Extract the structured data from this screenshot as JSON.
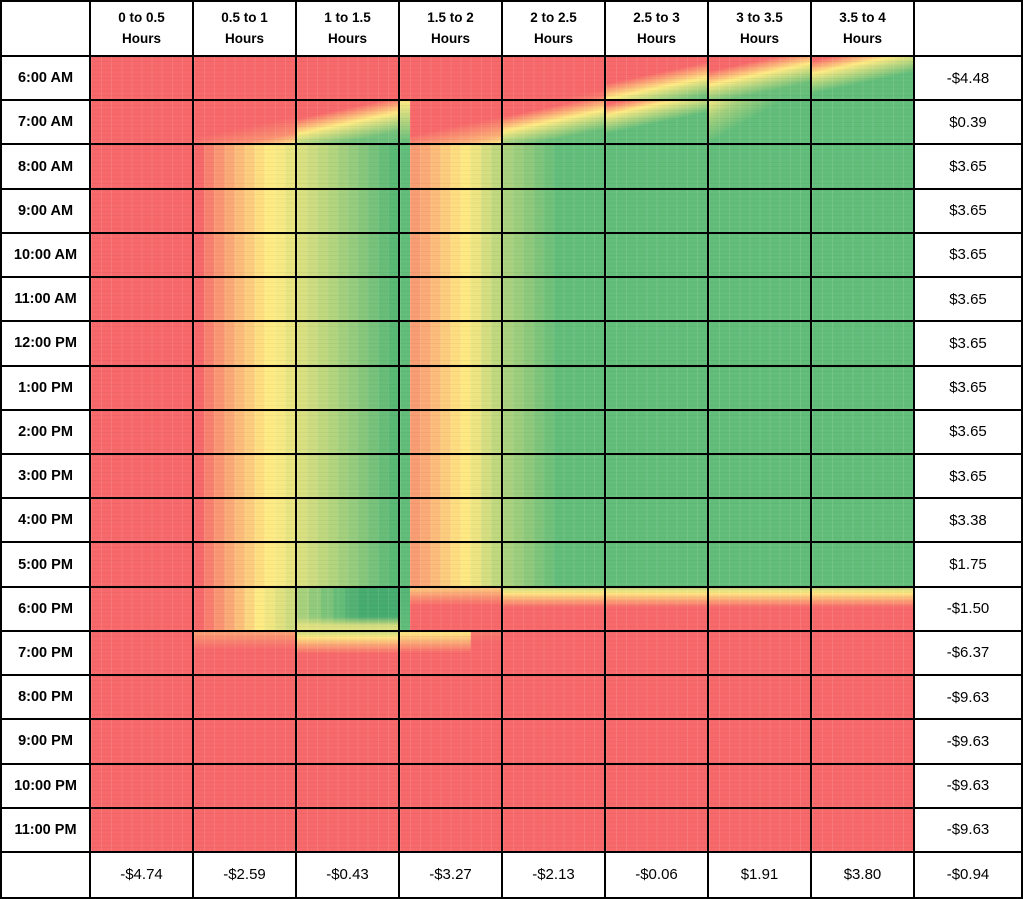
{
  "palette": {
    "scale_min_red": "#f8696b",
    "scale_mid_yellow": "#ffeb84",
    "scale_max_green": "#63be7b",
    "grid_line": "#000000",
    "cell_background": "#ffffff",
    "text": "#000000"
  },
  "header": {
    "corner_label": "",
    "duration_columns": [
      {
        "line1": "0 to 0.5",
        "line2": "Hours"
      },
      {
        "line1": "0.5 to 1",
        "line2": "Hours"
      },
      {
        "line1": "1 to 1.5",
        "line2": "Hours"
      },
      {
        "line1": "1.5 to 2",
        "line2": "Hours"
      },
      {
        "line1": "2 to 2.5",
        "line2": "Hours"
      },
      {
        "line1": "2.5 to 3",
        "line2": "Hours"
      },
      {
        "line1": "3 to 3.5",
        "line2": "Hours"
      },
      {
        "line1": "3.5 to 4",
        "line2": "Hours"
      }
    ],
    "totals_column_label": ""
  },
  "rows": [
    {
      "time": "6:00 AM",
      "total": "-$4.48",
      "cells": [
        "R",
        "R",
        "R",
        "R",
        "a5",
        "a6",
        "a7",
        "a8"
      ]
    },
    {
      "time": "7:00 AM",
      "total": "$0.39",
      "cells": [
        "R",
        "s2",
        "s3",
        "s4",
        "s5",
        "s6",
        "s7",
        "G"
      ]
    },
    {
      "time": "8:00 AM",
      "total": "$3.65",
      "cells": [
        "R",
        "b",
        "c",
        "d",
        "e",
        "G",
        "G",
        "G"
      ]
    },
    {
      "time": "9:00 AM",
      "total": "$3.65",
      "cells": [
        "R",
        "b",
        "c",
        "d",
        "e",
        "G",
        "G",
        "G"
      ]
    },
    {
      "time": "10:00 AM",
      "total": "$3.65",
      "cells": [
        "R",
        "b",
        "c",
        "d",
        "e",
        "G",
        "G",
        "G"
      ]
    },
    {
      "time": "11:00 AM",
      "total": "$3.65",
      "cells": [
        "R",
        "b",
        "c",
        "d",
        "e",
        "G",
        "G",
        "G"
      ]
    },
    {
      "time": "12:00 PM",
      "total": "$3.65",
      "cells": [
        "R",
        "b",
        "c",
        "d",
        "e",
        "G",
        "G",
        "G"
      ]
    },
    {
      "time": "1:00 PM",
      "total": "$3.65",
      "cells": [
        "R",
        "b",
        "c",
        "d",
        "e",
        "G",
        "G",
        "G"
      ]
    },
    {
      "time": "2:00 PM",
      "total": "$3.65",
      "cells": [
        "R",
        "b",
        "c",
        "d",
        "e",
        "G",
        "G",
        "G"
      ]
    },
    {
      "time": "3:00 PM",
      "total": "$3.65",
      "cells": [
        "R",
        "b",
        "c",
        "d",
        "e",
        "G",
        "G",
        "G"
      ]
    },
    {
      "time": "4:00 PM",
      "total": "$3.38",
      "cells": [
        "R",
        "b",
        "c",
        "d",
        "e",
        "G",
        "G",
        "G"
      ]
    },
    {
      "time": "5:00 PM",
      "total": "$1.75",
      "cells": [
        "R",
        "b",
        "c",
        "d",
        "e",
        "G",
        "G",
        "G"
      ]
    },
    {
      "time": "6:00 PM",
      "total": "-$1.50",
      "cells": [
        "R",
        "n2",
        "n3",
        "n4",
        "n5",
        "n5",
        "n5",
        "n5"
      ]
    },
    {
      "time": "7:00 PM",
      "total": "-$6.37",
      "cells": [
        "R",
        "m2",
        "m3",
        "m4",
        "R",
        "R",
        "R",
        "R"
      ]
    },
    {
      "time": "8:00 PM",
      "total": "-$9.63",
      "cells": [
        "R",
        "R",
        "R",
        "R",
        "R",
        "R",
        "R",
        "R"
      ]
    },
    {
      "time": "9:00 PM",
      "total": "-$9.63",
      "cells": [
        "R",
        "R",
        "R",
        "R",
        "R",
        "R",
        "R",
        "R"
      ]
    },
    {
      "time": "10:00 PM",
      "total": "-$9.63",
      "cells": [
        "R",
        "R",
        "R",
        "R",
        "R",
        "R",
        "R",
        "R"
      ]
    },
    {
      "time": "11:00 PM",
      "total": "-$9.63",
      "cells": [
        "R",
        "R",
        "R",
        "R",
        "R",
        "R",
        "R",
        "R"
      ]
    }
  ],
  "footer": {
    "corner_label": "",
    "column_totals": [
      "-$4.74",
      "-$2.59",
      "-$0.43",
      "-$3.27",
      "-$2.13",
      "-$0.06",
      "$1.91",
      "$3.80"
    ],
    "grand_total": "-$0.94"
  },
  "cell_styles": {
    "R": "#f8696b",
    "G": "#63be7b",
    "b": "linear-gradient(90deg,#f8696b 0 10%,#f9816f 10% 20%,#fa9673 20% 30%,#fbaa77 30% 40%,#fcbc7a 40% 50%,#fdcd7e 50% 60%,#fede81 60% 70%,#ffeb84 70% 80%,#f7e983 80% 90%,#e9e583 90% 100%)",
    "c": "linear-gradient(90deg,#d9e081 0 10%,#cddc80 10% 20%,#c0d97f 20% 30%,#b2d57e 30% 40%,#a4d07e 40% 50%,#96cc7d 50% 60%,#87c77c 60% 70%,#77c37b 70% 80%,#68be79 80% 90%,#5bb976 90% 100%)",
    "d": "linear-gradient(90deg,#63be7b 0 10%,#f99d74 10% 20%,#fbab77 20% 30%,#fcbc7a 30% 40%,#fdcd7e 40% 50%,#fedd81 50% 60%,#ffe983 60% 70%,#ece582 70% 80%,#d5de81 80% 90%,#c0d97f 90% 100%)",
    "e": "linear-gradient(90deg,#aad27e 0 10%,#9cce7d 10% 20%,#8ec97c 20% 30%,#7fc57c 30% 40%,#71c17b 40% 50%,#63be7b 50% 100%)",
    "a5": "linear-gradient(168deg,#f8696b 0 84%,#f97f6f 96%,#fb9b73 100%)",
    "a6": "linear-gradient(168deg,#f8696b 0 42%,#ffeb84 66%,#7ac47c 92%,#63be7b 100%)",
    "a7": "linear-gradient(168deg,#f8696b 0 22%,#ffeb84 44%,#6cc07b 74%,#63be7b 100%)",
    "a8": "linear-gradient(168deg,#f8696b 0 6%,#ffeb84 26%,#63be7b 58%)",
    "s2": "linear-gradient(168deg,#f8696b 0 58%,#fa9172 84%,#fede82 100%)",
    "s3": "linear-gradient(168deg,#f8696b 0 28%,#ffeb84 52%,#74c27c 82%,#63be7b 100%)",
    "s4": "linear-gradient(180deg,#ffe983 0,#b8d67f 45%,#63be7b 100%) 0 0/10% 100% no-repeat,linear-gradient(168deg,#f8696b 0 58%,#fcb278 88%,#ffe784 100%)",
    "s5": "linear-gradient(168deg,#f8696b 0 25%,#ffeb84 48%,#6cc07b 78%,#63be7b 100%)",
    "s6": "linear-gradient(168deg,#f8696b 0 5%,#ffeb84 22%,#63be7b 52%)",
    "s7": "linear-gradient(150deg,#f4e883 0,#a6d17e 18%,#63be7b 42%)",
    "n2": "linear-gradient(90deg,#f8696b 0 10%,#f97e6f 10% 20%,#fa9473 20% 30%,#fbaa77 30% 40%,#fcc07b 40% 50%,#fdd680 50% 60%,#ffeb84 60% 70%,#f0e782 70% 80%,#e0e181 80% 90%,#cfdc80 90% 100%)",
    "n3": "linear-gradient(0deg,rgba(233,228,130,0.9) 0 10%,rgba(233,228,130,0) 32%),linear-gradient(90deg,#a8d17e 0 12%,#93cb7d 12% 24%,#7dc47b 24% 36%,#66bd79 36% 48%,#53b274 48% 60%,#47ac70 60% 100%)",
    "n4": "linear-gradient(180deg,#56b675,#63be7b) 0 0/10% 100% no-repeat,linear-gradient(180deg,#fdc97e 0,#fa8970 26%,#f8696b 42%)",
    "n5": "linear-gradient(180deg,#cbda80 0,#ffe883 12%,#fba376 30%,#f8696b 46%)",
    "m2": "linear-gradient(180deg,#fba276 0,#f97a6e 28%,#f8696b 42%)",
    "m3": "linear-gradient(180deg,#d9df81 0 4%,#fee983 12%,#fba276 32%,#f8696b 52%)",
    "m4": "linear-gradient(180deg,#ffe983 0,rgba(255,233,131,0) 50%) 0 0/70% 100% no-repeat,linear-gradient(180deg,#f97d6e 0,#f8696b 25%)"
  },
  "chart_data": {
    "type": "heatmap",
    "title": "",
    "x_categories": [
      "0 to 0.5 Hours",
      "0.5 to 1 Hours",
      "1 to 1.5 Hours",
      "1.5 to 2 Hours",
      "2 to 2.5 Hours",
      "2.5 to 3 Hours",
      "3 to 3.5 Hours",
      "3.5 to 4 Hours"
    ],
    "y_categories": [
      "6:00 AM",
      "7:00 AM",
      "8:00 AM",
      "9:00 AM",
      "10:00 AM",
      "11:00 AM",
      "12:00 PM",
      "1:00 PM",
      "2:00 PM",
      "3:00 PM",
      "4:00 PM",
      "5:00 PM",
      "6:00 PM",
      "7:00 PM",
      "8:00 PM",
      "9:00 PM",
      "10:00 PM",
      "11:00 PM"
    ],
    "row_totals": [
      -4.48,
      0.39,
      3.65,
      3.65,
      3.65,
      3.65,
      3.65,
      3.65,
      3.65,
      3.65,
      3.38,
      1.75,
      -1.5,
      -6.37,
      -9.63,
      -9.63,
      -9.63,
      -9.63
    ],
    "column_totals": [
      -4.74,
      -2.59,
      -0.43,
      -3.27,
      -2.13,
      -0.06,
      1.91,
      3.8
    ],
    "grand_total": -0.94,
    "color_scale": {
      "min": "#f8696b",
      "mid": "#ffeb84",
      "max": "#63be7b"
    },
    "grid": true,
    "legend_position": "none"
  }
}
